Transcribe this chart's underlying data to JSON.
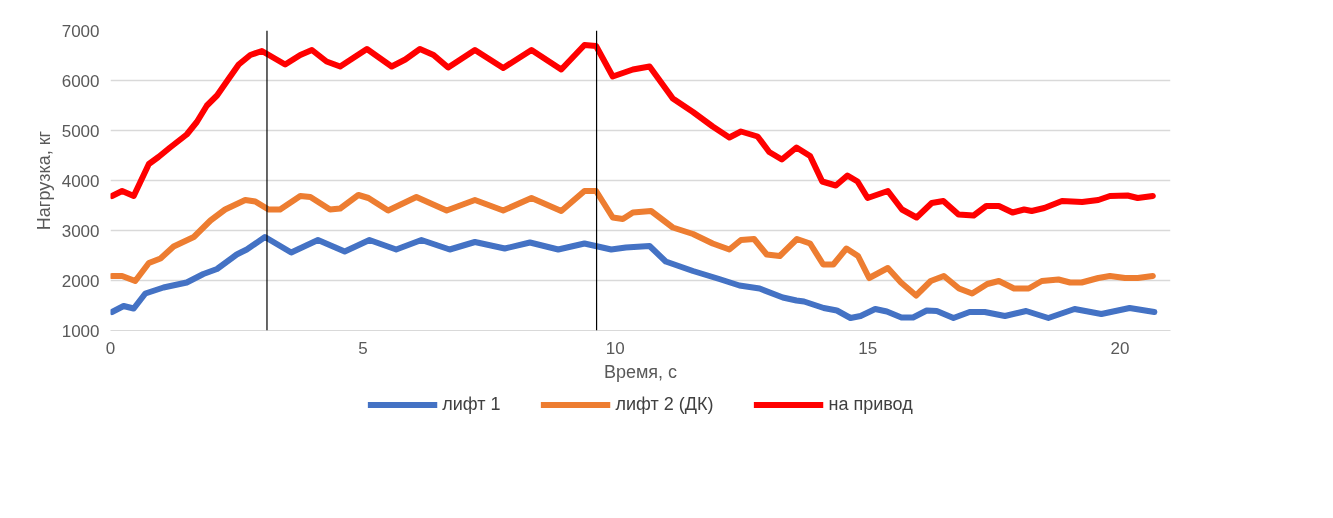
{
  "chart_data": {
    "type": "line",
    "xlabel": "Время, с",
    "ylabel": "Нагрузка, кг",
    "xlim": [
      0,
      21
    ],
    "xticks": [
      0,
      5,
      10,
      15,
      20
    ],
    "ylim": [
      1000,
      7000
    ],
    "yticks": [
      1000,
      2000,
      3000,
      4000,
      5000,
      6000,
      7000
    ],
    "grid": "y",
    "legend": "bottom",
    "line_style": "solid",
    "marker": "none",
    "ref_lines": [
      {
        "axis": "x",
        "value": 3.1,
        "color": "#000000"
      },
      {
        "axis": "x",
        "value": 9.63,
        "color": "#000000"
      }
    ],
    "series": [
      {
        "name": "лифт 1",
        "color": "#4472c4",
        "x": [
          0.03,
          0.26,
          0.46,
          0.69,
          1.05,
          1.51,
          1.84,
          2.11,
          2.5,
          2.7,
          3.06,
          3.58,
          4.11,
          4.64,
          5.13,
          5.66,
          6.16,
          6.72,
          7.22,
          7.81,
          8.31,
          8.87,
          9.39,
          9.92,
          10.21,
          10.68,
          11.0,
          11.54,
          12.06,
          12.46,
          12.86,
          13.32,
          13.59,
          13.74,
          14.13,
          14.39,
          14.66,
          14.86,
          15.15,
          15.38,
          15.67,
          15.9,
          16.17,
          16.37,
          16.7,
          17.02,
          17.32,
          17.72,
          18.14,
          18.58,
          19.1,
          19.63,
          20.19,
          20.68
        ],
        "values": [
          1370,
          1490,
          1440,
          1740,
          1860,
          1960,
          2130,
          2230,
          2520,
          2620,
          2870,
          2560,
          2810,
          2580,
          2810,
          2620,
          2810,
          2620,
          2770,
          2640,
          2760,
          2620,
          2740,
          2620,
          2660,
          2690,
          2380,
          2190,
          2030,
          1900,
          1840,
          1660,
          1600,
          1580,
          1450,
          1400,
          1250,
          1290,
          1430,
          1380,
          1260,
          1260,
          1400,
          1390,
          1250,
          1370,
          1370,
          1290,
          1390,
          1250,
          1430,
          1330,
          1450,
          1370
        ]
      },
      {
        "name": "лифт 2 (ДК)",
        "color": "#ed7d31",
        "x": [
          0.03,
          0.23,
          0.49,
          0.76,
          0.99,
          1.25,
          1.65,
          1.98,
          2.27,
          2.67,
          2.87,
          3.13,
          3.36,
          3.76,
          3.96,
          4.35,
          4.55,
          4.91,
          5.11,
          5.5,
          6.06,
          6.66,
          7.22,
          7.78,
          8.34,
          8.93,
          9.39,
          9.62,
          9.95,
          10.15,
          10.35,
          10.71,
          11.14,
          11.54,
          11.93,
          12.26,
          12.49,
          12.75,
          13.0,
          13.26,
          13.6,
          13.86,
          14.12,
          14.32,
          14.58,
          14.81,
          15.03,
          15.4,
          15.66,
          15.96,
          16.25,
          16.51,
          16.81,
          17.07,
          17.37,
          17.6,
          17.9,
          18.19,
          18.45,
          18.78,
          19.01,
          19.24,
          19.57,
          19.8,
          20.1,
          20.35,
          20.65
        ],
        "values": [
          2090,
          2090,
          1990,
          2350,
          2440,
          2680,
          2870,
          3200,
          3420,
          3610,
          3580,
          3420,
          3420,
          3690,
          3670,
          3420,
          3440,
          3710,
          3650,
          3400,
          3670,
          3400,
          3610,
          3400,
          3650,
          3390,
          3790,
          3790,
          3260,
          3230,
          3360,
          3390,
          3060,
          2930,
          2740,
          2620,
          2810,
          2830,
          2520,
          2490,
          2830,
          2740,
          2320,
          2320,
          2640,
          2490,
          2050,
          2250,
          1960,
          1700,
          1990,
          2090,
          1840,
          1740,
          1930,
          1990,
          1840,
          1840,
          1990,
          2020,
          1960,
          1960,
          2050,
          2090,
          2050,
          2050,
          2090
        ]
      },
      {
        "name": "на привод",
        "color": "#ff0000",
        "x": [
          0.03,
          0.23,
          0.46,
          0.76,
          0.95,
          1.18,
          1.51,
          1.71,
          1.91,
          2.11,
          2.31,
          2.54,
          2.77,
          3.0,
          3.46,
          3.76,
          3.99,
          4.28,
          4.55,
          5.08,
          5.57,
          5.84,
          6.13,
          6.4,
          6.69,
          7.22,
          7.78,
          8.34,
          8.93,
          9.39,
          9.62,
          9.95,
          10.35,
          10.68,
          11.14,
          11.54,
          11.93,
          12.26,
          12.49,
          12.82,
          13.05,
          13.3,
          13.59,
          13.86,
          14.1,
          14.37,
          14.6,
          14.8,
          15.0,
          15.4,
          15.68,
          15.97,
          16.27,
          16.5,
          16.8,
          17.1,
          17.35,
          17.6,
          17.87,
          18.1,
          18.25,
          18.5,
          18.85,
          19.25,
          19.57,
          19.8,
          20.15,
          20.35,
          20.65
        ],
        "values": [
          3690,
          3790,
          3690,
          4330,
          4470,
          4660,
          4920,
          5170,
          5500,
          5700,
          5990,
          6320,
          6510,
          6590,
          6320,
          6510,
          6610,
          6380,
          6280,
          6630,
          6280,
          6420,
          6630,
          6510,
          6260,
          6610,
          6250,
          6610,
          6220,
          6710,
          6690,
          6080,
          6220,
          6280,
          5640,
          5370,
          5080,
          4860,
          4980,
          4880,
          4570,
          4420,
          4660,
          4490,
          3980,
          3900,
          4100,
          3980,
          3650,
          3790,
          3420,
          3260,
          3550,
          3590,
          3320,
          3300,
          3490,
          3490,
          3360,
          3420,
          3390,
          3450,
          3590,
          3570,
          3610,
          3690,
          3700,
          3650,
          3690
        ]
      }
    ]
  }
}
